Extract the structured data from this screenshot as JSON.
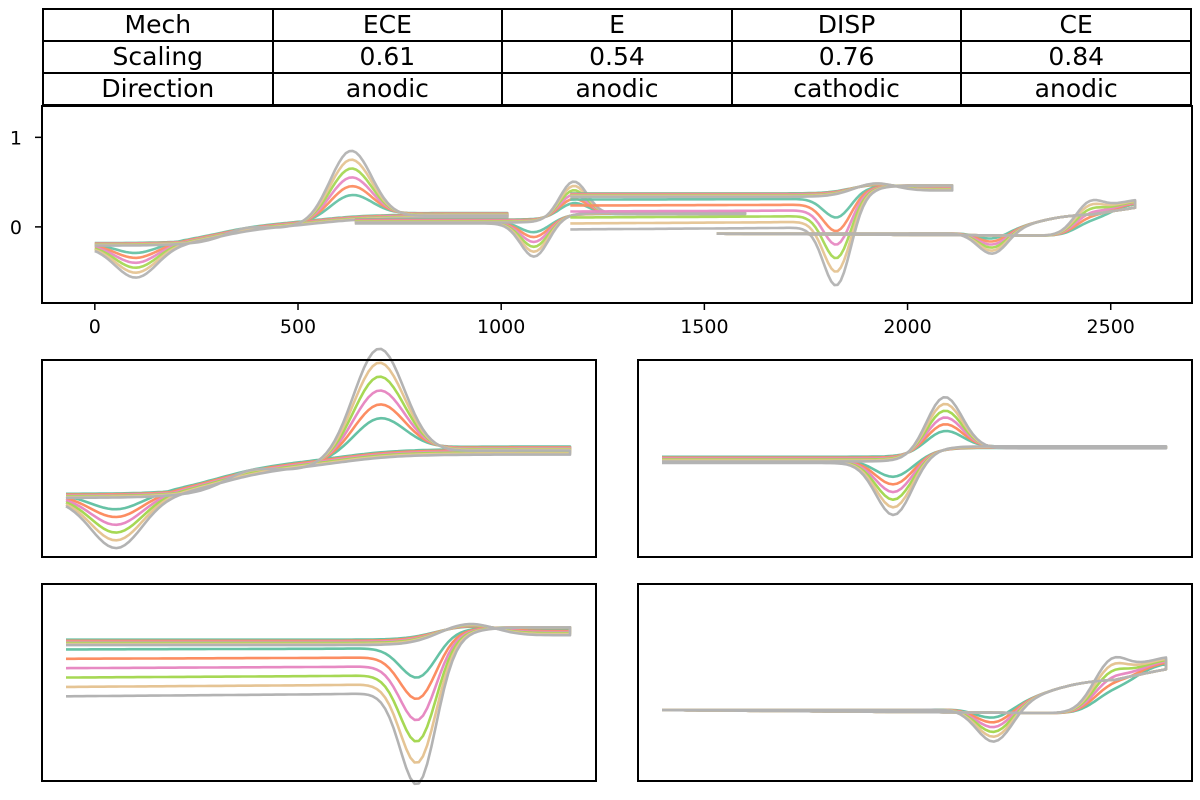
{
  "table": {
    "rows": [
      [
        "Mech",
        "ECE",
        "E",
        "DISP",
        "CE"
      ],
      [
        "Scaling",
        "0.61",
        "0.54",
        "0.76",
        "0.84"
      ],
      [
        "Direction",
        "anodic",
        "anodic",
        "cathodic",
        "anodic"
      ]
    ]
  },
  "palette": [
    "#66c2a5",
    "#fc8d62",
    "#e78ac3",
    "#a6d854",
    "#e5c494",
    "#b3b3b3"
  ],
  "chart_data": [
    {
      "type": "line",
      "panel": "concatenated",
      "xlim": [
        -130,
        2700
      ],
      "ylim": [
        -0.85,
        1.35
      ],
      "xticks": [
        0,
        500,
        1000,
        1500,
        2000,
        2500
      ],
      "yticks": [
        0,
        1
      ],
      "xlabel": "",
      "ylabel": "",
      "n_curves": 6,
      "segments": [
        "ECE",
        "E",
        "DISP",
        "CE"
      ],
      "segment_x": [
        [
          0,
          1015
        ],
        [
          640,
          1600
        ],
        [
          1170,
          2110
        ],
        [
          1530,
          2560
        ]
      ]
    },
    {
      "type": "line",
      "panel": "ECE",
      "mechanism": "ECE",
      "axes": "hidden",
      "scaling": 0.61,
      "direction": "anodic",
      "n_curves": 6
    },
    {
      "type": "line",
      "panel": "E",
      "mechanism": "E",
      "axes": "hidden",
      "scaling": 0.54,
      "direction": "anodic",
      "n_curves": 6
    },
    {
      "type": "line",
      "panel": "DISP",
      "mechanism": "DISP",
      "axes": "hidden",
      "scaling": 0.76,
      "direction": "cathodic",
      "n_curves": 6
    },
    {
      "type": "line",
      "panel": "CE",
      "mechanism": "CE",
      "axes": "hidden",
      "scaling": 0.84,
      "direction": "anodic",
      "n_curves": 6
    }
  ]
}
